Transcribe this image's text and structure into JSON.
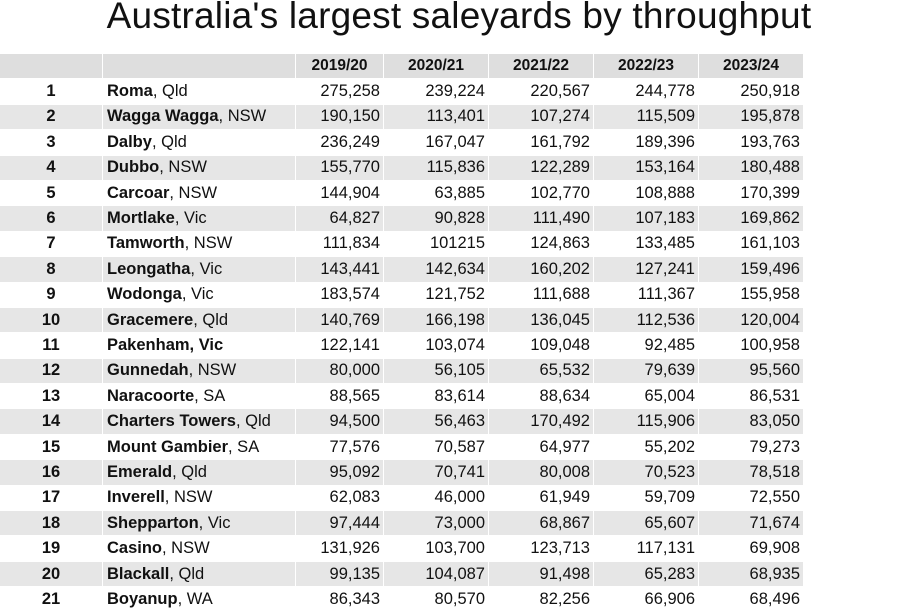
{
  "chart_data": {
    "type": "table",
    "title": "Australia's largest saleyards by throughput",
    "columns": [
      "2019/20",
      "2020/21",
      "2021/22",
      "2022/23",
      "2023/24"
    ],
    "rows": [
      {
        "rank": "1",
        "name": "Roma",
        "state": ", Qld",
        "values": [
          "275,258",
          "239,224",
          "220,567",
          "244,778",
          "250,918"
        ]
      },
      {
        "rank": "2",
        "name": "Wagga Wagga",
        "state": ", NSW",
        "values": [
          "190,150",
          "113,401",
          "107,274",
          "115,509",
          "195,878"
        ]
      },
      {
        "rank": "3",
        "name": "Dalby",
        "state": ", Qld",
        "values": [
          "236,249",
          "167,047",
          "161,792",
          "189,396",
          "193,763"
        ]
      },
      {
        "rank": "4",
        "name": "Dubbo",
        "state": ", NSW",
        "values": [
          "155,770",
          "115,836",
          "122,289",
          "153,164",
          "180,488"
        ]
      },
      {
        "rank": "5",
        "name": "Carcoar",
        "state": ", NSW",
        "values": [
          "144,904",
          "63,885",
          "102,770",
          "108,888",
          "170,399"
        ]
      },
      {
        "rank": "6",
        "name": "Mortlake",
        "state": ", Vic",
        "values": [
          "64,827",
          "90,828",
          "111,490",
          "107,183",
          "169,862"
        ]
      },
      {
        "rank": "7",
        "name": "Tamworth",
        "state": ", NSW",
        "values": [
          "111,834",
          "101215",
          "124,863",
          "133,485",
          "161,103"
        ]
      },
      {
        "rank": "8",
        "name": "Leongatha",
        "state": ", Vic",
        "values": [
          "143,441",
          "142,634",
          "160,202",
          "127,241",
          "159,496"
        ]
      },
      {
        "rank": "9",
        "name": "Wodonga",
        "state": ", Vic",
        "values": [
          "183,574",
          "121,752",
          "111,688",
          "111,367",
          "155,958"
        ]
      },
      {
        "rank": "10",
        "name": "Gracemere",
        "state": ", Qld",
        "values": [
          "140,769",
          "166,198",
          "136,045",
          "112,536",
          "120,004"
        ]
      },
      {
        "rank": "11",
        "name": "Pakenham, Vic",
        "state": "",
        "values": [
          "122,141",
          "103,074",
          "109,048",
          "92,485",
          "100,958"
        ]
      },
      {
        "rank": "12",
        "name": "Gunnedah",
        "state": ", NSW",
        "values": [
          "80,000",
          "56,105",
          "65,532",
          "79,639",
          "95,560"
        ]
      },
      {
        "rank": "13",
        "name": "Naracoorte",
        "state": ", SA",
        "values": [
          "88,565",
          "83,614",
          "88,634",
          "65,004",
          "86,531"
        ]
      },
      {
        "rank": "14",
        "name": "Charters Towers",
        "state": ", Qld",
        "values": [
          "94,500",
          "56,463",
          "170,492",
          "115,906",
          "83,050"
        ]
      },
      {
        "rank": "15",
        "name": "Mount Gambier",
        "state": ", SA",
        "values": [
          "77,576",
          "70,587",
          "64,977",
          "55,202",
          "79,273"
        ]
      },
      {
        "rank": "16",
        "name": "Emerald",
        "state": ", Qld",
        "values": [
          "95,092",
          "70,741",
          "80,008",
          "70,523",
          "78,518"
        ]
      },
      {
        "rank": "17",
        "name": "Inverell",
        "state": ", NSW",
        "values": [
          "62,083",
          "46,000",
          "61,949",
          "59,709",
          "72,550"
        ]
      },
      {
        "rank": "18",
        "name": "Shepparton",
        "state": ", Vic",
        "values": [
          "97,444",
          "73,000",
          "68,867",
          "65,607",
          "71,674"
        ]
      },
      {
        "rank": "19",
        "name": "Casino",
        "state": ", NSW",
        "values": [
          "131,926",
          "103,700",
          "123,713",
          "117,131",
          "69,908"
        ]
      },
      {
        "rank": "20",
        "name": "Blackall",
        "state": ", Qld",
        "values": [
          "99,135",
          "104,087",
          "91,498",
          "65,283",
          "68,935"
        ]
      },
      {
        "rank": "21",
        "name": "Boyanup",
        "state": ", WA",
        "values": [
          "86,343",
          "80,570",
          "82,256",
          "66,906",
          "68,496"
        ]
      }
    ]
  }
}
